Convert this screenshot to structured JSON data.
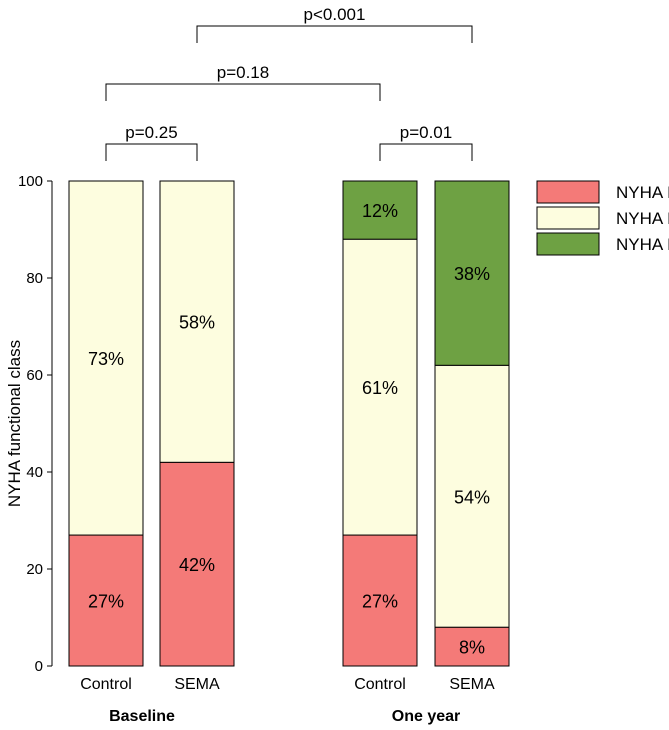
{
  "chart_data": {
    "type": "bar",
    "stacked": true,
    "ylabel": "NYHA functional class",
    "ylim": [
      0,
      100
    ],
    "yticks": [
      0,
      20,
      40,
      60,
      80,
      100
    ],
    "groups": [
      {
        "label": "Baseline",
        "categories": [
          "Control",
          "SEMA"
        ]
      },
      {
        "label": "One year",
        "categories": [
          "Control",
          "SEMA"
        ]
      }
    ],
    "bars": [
      {
        "group": "Baseline",
        "category": "Control",
        "segments": [
          {
            "name": "NYHA III",
            "value": 27,
            "label": "27%"
          },
          {
            "name": "NYHA II",
            "value": 73,
            "label": "73%"
          }
        ]
      },
      {
        "group": "Baseline",
        "category": "SEMA",
        "segments": [
          {
            "name": "NYHA III",
            "value": 42,
            "label": "42%"
          },
          {
            "name": "NYHA II",
            "value": 58,
            "label": "58%"
          }
        ]
      },
      {
        "group": "One year",
        "category": "Control",
        "segments": [
          {
            "name": "NYHA III",
            "value": 27,
            "label": "27%"
          },
          {
            "name": "NYHA II",
            "value": 61,
            "label": "61%"
          },
          {
            "name": "NYHA I",
            "value": 12,
            "label": "12%"
          }
        ]
      },
      {
        "group": "One year",
        "category": "SEMA",
        "segments": [
          {
            "name": "NYHA III",
            "value": 8,
            "label": "8%"
          },
          {
            "name": "NYHA II",
            "value": 54,
            "label": "54%"
          },
          {
            "name": "NYHA I",
            "value": 38,
            "label": "38%"
          }
        ]
      }
    ],
    "legend": {
      "position": "top-right",
      "entries": [
        {
          "name": "NYHA III",
          "color": "#f47a78"
        },
        {
          "name": "NYHA II",
          "color": "#fdfddf"
        },
        {
          "name": "NYHA I",
          "color": "#6ea143"
        }
      ]
    },
    "comparisons": [
      {
        "from_bar": 0,
        "to_bar": 1,
        "label": "p=0.25"
      },
      {
        "from_bar": 2,
        "to_bar": 3,
        "label": "p=0.01"
      },
      {
        "from_bar": 0,
        "to_bar": 2,
        "label": "p=0.18"
      },
      {
        "from_bar": 1,
        "to_bar": 3,
        "label": "p<0.001"
      }
    ]
  }
}
